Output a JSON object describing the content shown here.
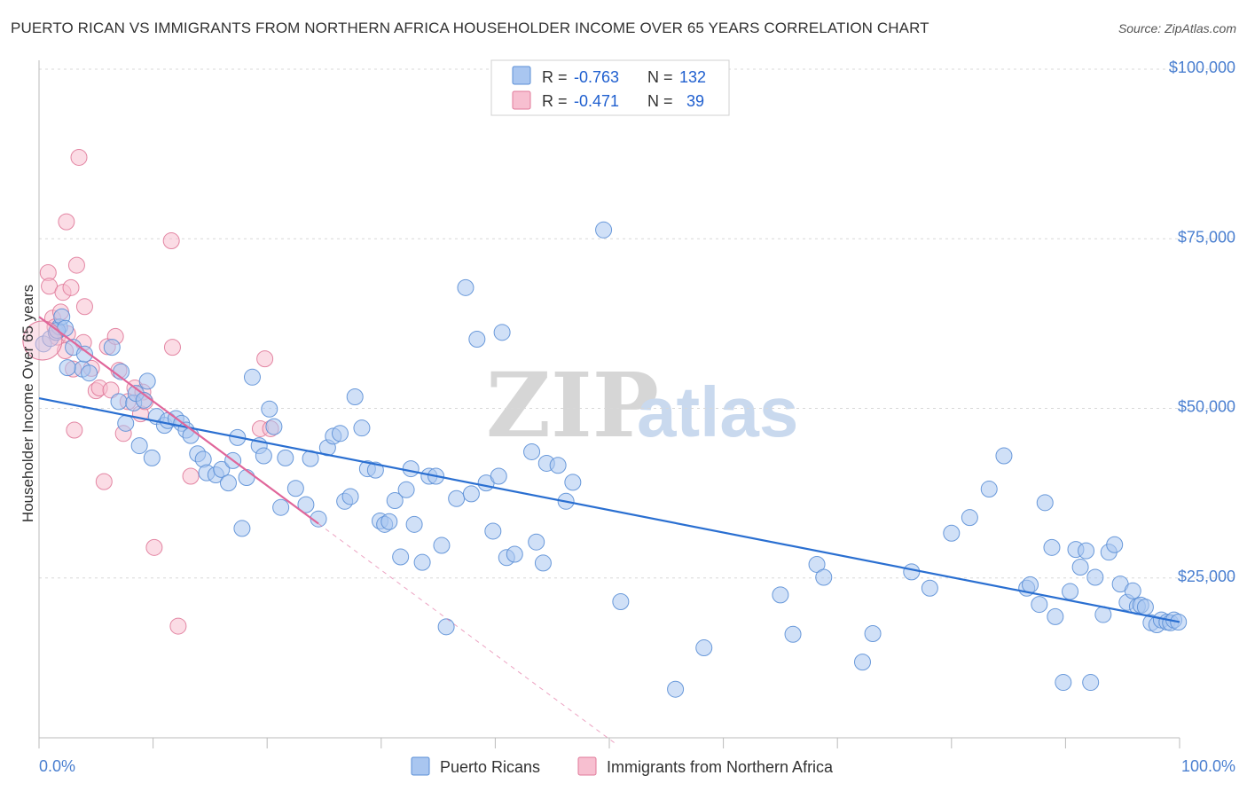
{
  "title": "PUERTO RICAN VS IMMIGRANTS FROM NORTHERN AFRICA HOUSEHOLDER INCOME OVER 65 YEARS CORRELATION CHART",
  "source": "Source: ZipAtlas.com",
  "watermark": {
    "zip": "ZIP",
    "atlas": "atlas"
  },
  "legend": {
    "r_label": "R =",
    "n_label": "N =",
    "items": [
      {
        "r": "-0.763",
        "n": "132",
        "color": "#a9c6f0",
        "stroke": "#5b8fd6"
      },
      {
        "r": "-0.471",
        "n": "39",
        "color": "#f7bfd0",
        "stroke": "#e07a9a"
      }
    ]
  },
  "chart_data": {
    "type": "scatter",
    "title": "PUERTO RICAN VS IMMIGRANTS FROM NORTHERN AFRICA HOUSEHOLDER INCOME OVER 65 YEARS CORRELATION CHART",
    "xlabel": "",
    "ylabel": "Householder Income Over 65 years",
    "xlim": [
      0,
      100
    ],
    "ylim": [
      0,
      105000
    ],
    "x_tick_labels": [
      "0.0%",
      "100.0%"
    ],
    "y_ticks": [
      25000,
      50000,
      75000,
      100000
    ],
    "y_tick_labels": [
      "$25,000",
      "$50,000",
      "$75,000",
      "$100,000"
    ],
    "series": [
      {
        "name": "Puerto Ricans",
        "color": "#a9c6f0",
        "stroke": "#5b8fd6",
        "line_color": "#2a6fd1",
        "trend": {
          "x0": 0,
          "y0": 51500,
          "x1": 100,
          "y1": 18500,
          "x_end": 100
        },
        "points": [
          [
            0.4,
            59500
          ],
          [
            1.0,
            60300
          ],
          [
            1.5,
            61200
          ],
          [
            1.8,
            62000
          ],
          [
            1.6,
            61500
          ],
          [
            2.0,
            63500
          ],
          [
            2.3,
            61800
          ],
          [
            3.0,
            59000
          ],
          [
            3.8,
            55800
          ],
          [
            4.4,
            55200
          ],
          [
            6.4,
            59000
          ],
          [
            7.2,
            55400
          ],
          [
            2.5,
            56000
          ],
          [
            4.0,
            58000
          ],
          [
            7.0,
            51000
          ],
          [
            7.6,
            47800
          ],
          [
            8.3,
            50800
          ],
          [
            8.5,
            52200
          ],
          [
            8.8,
            44500
          ],
          [
            9.2,
            51200
          ],
          [
            9.5,
            54000
          ],
          [
            9.9,
            42700
          ],
          [
            10.3,
            48800
          ],
          [
            11.0,
            47500
          ],
          [
            11.3,
            48200
          ],
          [
            12.0,
            48500
          ],
          [
            12.5,
            47800
          ],
          [
            12.9,
            46800
          ],
          [
            13.3,
            46000
          ],
          [
            13.9,
            43300
          ],
          [
            14.4,
            42500
          ],
          [
            14.7,
            40500
          ],
          [
            15.5,
            40200
          ],
          [
            16.0,
            41000
          ],
          [
            16.6,
            39000
          ],
          [
            17.0,
            42300
          ],
          [
            17.4,
            45700
          ],
          [
            17.8,
            32300
          ],
          [
            18.2,
            39800
          ],
          [
            18.7,
            54600
          ],
          [
            19.3,
            44500
          ],
          [
            19.7,
            43000
          ],
          [
            20.2,
            49900
          ],
          [
            20.6,
            47300
          ],
          [
            21.2,
            35400
          ],
          [
            21.6,
            42700
          ],
          [
            22.5,
            38200
          ],
          [
            23.4,
            35800
          ],
          [
            23.8,
            42600
          ],
          [
            24.5,
            33700
          ],
          [
            25.3,
            44200
          ],
          [
            25.8,
            45900
          ],
          [
            26.4,
            46300
          ],
          [
            26.8,
            36300
          ],
          [
            27.3,
            37000
          ],
          [
            27.7,
            51700
          ],
          [
            28.3,
            47100
          ],
          [
            28.8,
            41100
          ],
          [
            29.5,
            40900
          ],
          [
            29.9,
            33400
          ],
          [
            30.3,
            32900
          ],
          [
            30.7,
            33300
          ],
          [
            31.2,
            36400
          ],
          [
            31.7,
            28100
          ],
          [
            32.2,
            38000
          ],
          [
            32.6,
            41100
          ],
          [
            32.9,
            32900
          ],
          [
            33.6,
            27300
          ],
          [
            34.2,
            40000
          ],
          [
            34.8,
            40000
          ],
          [
            35.3,
            29800
          ],
          [
            35.7,
            17800
          ],
          [
            36.6,
            36700
          ],
          [
            37.4,
            67800
          ],
          [
            37.9,
            37400
          ],
          [
            38.4,
            60200
          ],
          [
            39.2,
            39000
          ],
          [
            39.8,
            31900
          ],
          [
            40.3,
            40000
          ],
          [
            40.6,
            61200
          ],
          [
            41.0,
            28000
          ],
          [
            41.7,
            28500
          ],
          [
            43.2,
            43600
          ],
          [
            43.6,
            30300
          ],
          [
            44.2,
            27200
          ],
          [
            44.5,
            41900
          ],
          [
            45.5,
            41600
          ],
          [
            46.2,
            36300
          ],
          [
            46.8,
            39100
          ],
          [
            49.5,
            76300
          ],
          [
            51.0,
            21500
          ],
          [
            55.8,
            8600
          ],
          [
            58.3,
            14700
          ],
          [
            65.0,
            22500
          ],
          [
            66.1,
            16700
          ],
          [
            68.2,
            27000
          ],
          [
            68.8,
            25100
          ],
          [
            72.2,
            12600
          ],
          [
            73.1,
            16800
          ],
          [
            76.5,
            25900
          ],
          [
            78.1,
            23500
          ],
          [
            80.0,
            31600
          ],
          [
            81.6,
            33900
          ],
          [
            83.3,
            38100
          ],
          [
            84.6,
            43000
          ],
          [
            86.6,
            23500
          ],
          [
            86.9,
            24000
          ],
          [
            87.7,
            21100
          ],
          [
            88.2,
            36100
          ],
          [
            88.8,
            29500
          ],
          [
            89.1,
            19300
          ],
          [
            89.8,
            9600
          ],
          [
            90.4,
            23000
          ],
          [
            90.9,
            29200
          ],
          [
            91.3,
            26600
          ],
          [
            91.8,
            29000
          ],
          [
            92.2,
            9600
          ],
          [
            92.6,
            25100
          ],
          [
            93.3,
            19600
          ],
          [
            93.8,
            28800
          ],
          [
            94.3,
            29900
          ],
          [
            94.8,
            24100
          ],
          [
            95.4,
            21400
          ],
          [
            95.9,
            23100
          ],
          [
            96.3,
            20800
          ],
          [
            96.6,
            21000
          ],
          [
            97.0,
            20700
          ],
          [
            97.5,
            18400
          ],
          [
            98.0,
            18100
          ],
          [
            98.4,
            18800
          ],
          [
            98.9,
            18500
          ],
          [
            99.2,
            18400
          ],
          [
            99.5,
            18800
          ],
          [
            99.9,
            18500
          ]
        ]
      },
      {
        "name": "Immigrants from Northern Africa",
        "color": "#f7bfd0",
        "stroke": "#e07a9a",
        "line_color": "#e0669a",
        "trend": {
          "x0": 0,
          "y0": 63500,
          "x1": 24.5,
          "y1": 33000,
          "x_end": 50.5
        },
        "points": [
          [
            0.8,
            70000
          ],
          [
            0.9,
            68000
          ],
          [
            1.2,
            63300
          ],
          [
            1.4,
            62000
          ],
          [
            1.6,
            60500
          ],
          [
            1.9,
            64200
          ],
          [
            2.1,
            67100
          ],
          [
            2.3,
            58500
          ],
          [
            2.5,
            61000
          ],
          [
            2.8,
            67800
          ],
          [
            2.4,
            77500
          ],
          [
            3.0,
            55800
          ],
          [
            3.1,
            46800
          ],
          [
            3.3,
            71100
          ],
          [
            3.5,
            87000
          ],
          [
            3.9,
            59700
          ],
          [
            4.0,
            65000
          ],
          [
            4.6,
            55900
          ],
          [
            5.0,
            52600
          ],
          [
            5.3,
            53000
          ],
          [
            5.7,
            39200
          ],
          [
            6.0,
            59100
          ],
          [
            6.3,
            52700
          ],
          [
            6.7,
            60600
          ],
          [
            7.0,
            55600
          ],
          [
            7.4,
            46300
          ],
          [
            7.8,
            51000
          ],
          [
            8.4,
            53000
          ],
          [
            8.9,
            49200
          ],
          [
            9.1,
            52400
          ],
          [
            9.3,
            51000
          ],
          [
            10.1,
            29500
          ],
          [
            11.6,
            74700
          ],
          [
            11.7,
            59000
          ],
          [
            12.2,
            17900
          ],
          [
            13.3,
            40000
          ],
          [
            19.4,
            47000
          ],
          [
            19.8,
            57300
          ],
          [
            20.3,
            47000
          ]
        ]
      }
    ]
  }
}
